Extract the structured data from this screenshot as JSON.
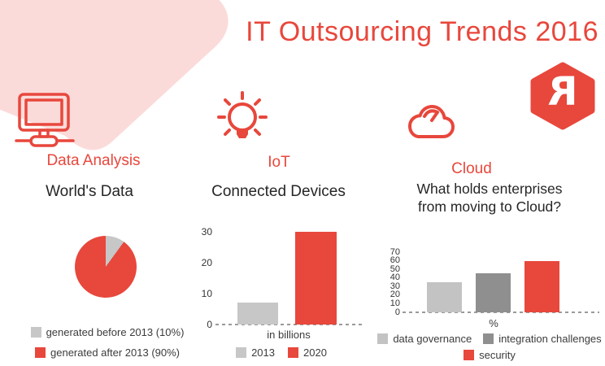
{
  "title": "IT Outsourcing Trends 2016",
  "logo": {
    "letter": "R"
  },
  "colors": {
    "accent_red": "#e8473c",
    "pink_shape": "#fbdbd9",
    "light_gray": "#c7c7c7",
    "mid_gray": "#c3c3c3",
    "dark_gray": "#8f8f8f",
    "text_dark": "#262626",
    "dash_gray": "#9a9a9a"
  },
  "sections": [
    {
      "label": "Data Analysis",
      "icon": "monitor-icon"
    },
    {
      "label": "IoT",
      "icon": "lightbulb-icon"
    },
    {
      "label": "Cloud",
      "icon": "cloud-icon"
    }
  ],
  "chart_data": [
    {
      "type": "pie",
      "title": "World's Data",
      "slices": [
        {
          "label": "generated before 2013 (10%)",
          "value": 10,
          "color": "#c7c7c7"
        },
        {
          "label": "generated after 2013 (90%)",
          "value": 90,
          "color": "#e8473c"
        }
      ],
      "start_angle_deg": 0,
      "legend_position": "bottom"
    },
    {
      "type": "bar",
      "title": "Connected Devices",
      "categories": [
        "2013",
        "2020"
      ],
      "values": [
        7,
        30
      ],
      "colors": [
        "#c7c7c7",
        "#e8473c"
      ],
      "xlabel": "in billions",
      "ylabel": "",
      "yticks": [
        0,
        10,
        20,
        30
      ],
      "ylim": [
        0,
        30
      ],
      "grid": false,
      "baseline": "dashed",
      "legend_position": "bottom"
    },
    {
      "type": "bar",
      "title": "What holds enterprises from moving to Cloud?",
      "title_lines": [
        "What holds enterprises",
        "from moving to Cloud?"
      ],
      "categories": [
        "data governance",
        "integration challenges",
        "security"
      ],
      "values": [
        35,
        45,
        60
      ],
      "colors": [
        "#c3c3c3",
        "#8f8f8f",
        "#e8473c"
      ],
      "xlabel": "%",
      "ylabel": "",
      "yticks": [
        0,
        10,
        20,
        30,
        40,
        50,
        60,
        70
      ],
      "ylim": [
        0,
        70
      ],
      "grid": false,
      "baseline": "dashed",
      "legend_position": "bottom"
    }
  ]
}
